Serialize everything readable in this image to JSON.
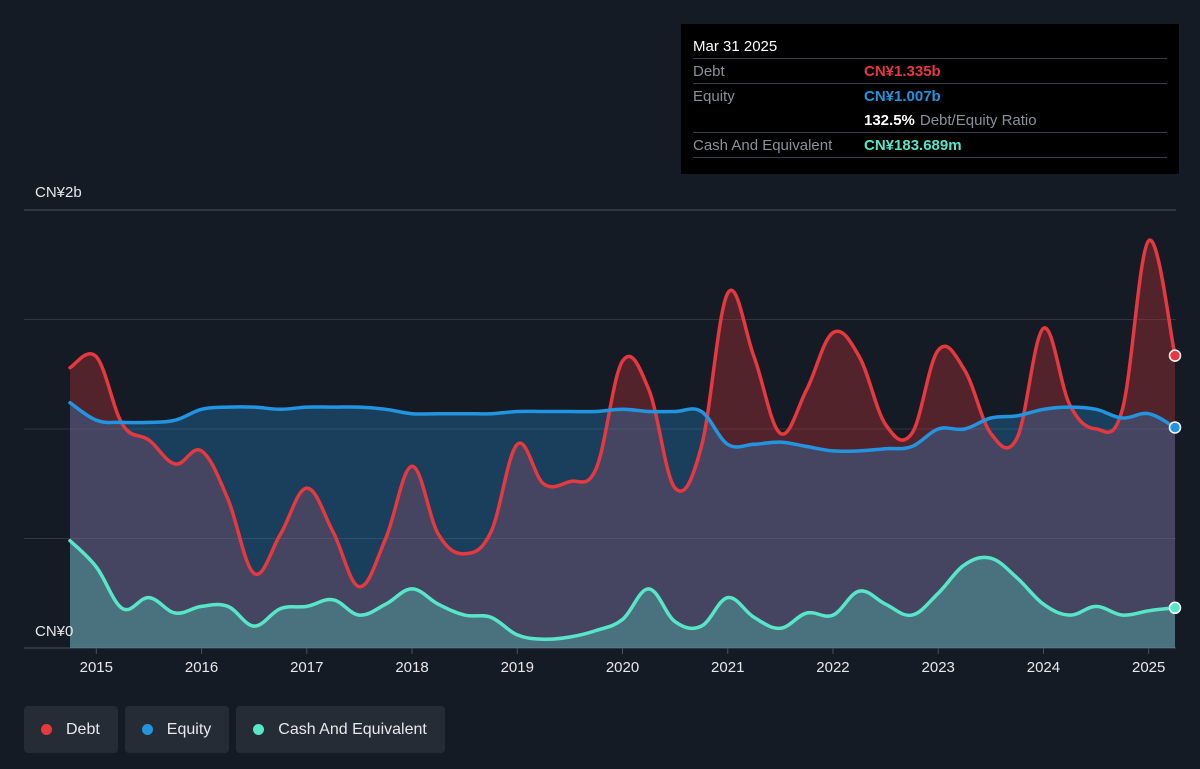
{
  "tooltip": {
    "date": "Mar 31 2025",
    "debt_label": "Debt",
    "debt_value": "CN¥1.335b",
    "equity_label": "Equity",
    "equity_value": "CN¥1.007b",
    "ratio_value": "132.5%",
    "ratio_label": "Debt/Equity Ratio",
    "cash_label": "Cash And Equivalent",
    "cash_value": "CN¥183.689m"
  },
  "legend": [
    {
      "label": "Debt",
      "color": "#e5393f"
    },
    {
      "label": "Equity",
      "color": "#2394df"
    },
    {
      "label": "Cash And Equivalent",
      "color": "#58e6c9"
    }
  ],
  "chart_data": {
    "type": "area",
    "y_unit": "CN¥b",
    "ylim": [
      0,
      2
    ],
    "y_tick_labels": [
      "CN¥2b",
      "CN¥0"
    ],
    "x_tick_labels": [
      "2015",
      "2016",
      "2017",
      "2018",
      "2019",
      "2020",
      "2021",
      "2022",
      "2023",
      "2024",
      "2025"
    ],
    "grid": true,
    "x": [
      2014.75,
      2015.0,
      2015.25,
      2015.5,
      2015.75,
      2016.0,
      2016.25,
      2016.5,
      2016.75,
      2017.0,
      2017.25,
      2017.5,
      2017.75,
      2018.0,
      2018.25,
      2018.5,
      2018.75,
      2019.0,
      2019.25,
      2019.5,
      2019.75,
      2020.0,
      2020.25,
      2020.5,
      2020.75,
      2021.0,
      2021.25,
      2021.5,
      2021.75,
      2022.0,
      2022.25,
      2022.5,
      2022.75,
      2023.0,
      2023.25,
      2023.5,
      2023.75,
      2024.0,
      2024.25,
      2024.5,
      2024.75,
      2025.0,
      2025.25
    ],
    "series": [
      {
        "name": "Debt",
        "color": "#e5393f",
        "values": [
          1.28,
          1.33,
          1.02,
          0.95,
          0.84,
          0.9,
          0.68,
          0.34,
          0.52,
          0.73,
          0.53,
          0.28,
          0.5,
          0.83,
          0.52,
          0.43,
          0.53,
          0.93,
          0.75,
          0.76,
          0.82,
          1.31,
          1.18,
          0.73,
          0.92,
          1.62,
          1.33,
          0.98,
          1.18,
          1.44,
          1.33,
          1.02,
          0.98,
          1.36,
          1.27,
          0.98,
          0.96,
          1.46,
          1.11,
          1.0,
          1.09,
          1.86,
          1.335
        ]
      },
      {
        "name": "Equity",
        "color": "#2394df",
        "values": [
          1.12,
          1.04,
          1.03,
          1.03,
          1.04,
          1.09,
          1.1,
          1.1,
          1.09,
          1.1,
          1.1,
          1.1,
          1.09,
          1.07,
          1.07,
          1.07,
          1.07,
          1.08,
          1.08,
          1.08,
          1.08,
          1.09,
          1.08,
          1.08,
          1.08,
          0.93,
          0.93,
          0.94,
          0.92,
          0.9,
          0.9,
          0.91,
          0.92,
          1.0,
          1.0,
          1.05,
          1.06,
          1.09,
          1.1,
          1.09,
          1.05,
          1.07,
          1.007
        ]
      },
      {
        "name": "Cash And Equivalent",
        "color": "#58e6c9",
        "values": [
          0.49,
          0.37,
          0.18,
          0.23,
          0.16,
          0.19,
          0.19,
          0.1,
          0.18,
          0.19,
          0.22,
          0.15,
          0.2,
          0.27,
          0.2,
          0.15,
          0.14,
          0.06,
          0.04,
          0.05,
          0.08,
          0.13,
          0.27,
          0.12,
          0.1,
          0.23,
          0.14,
          0.09,
          0.16,
          0.15,
          0.26,
          0.2,
          0.15,
          0.25,
          0.38,
          0.41,
          0.32,
          0.2,
          0.15,
          0.19,
          0.15,
          0.17,
          0.183689
        ]
      }
    ]
  }
}
